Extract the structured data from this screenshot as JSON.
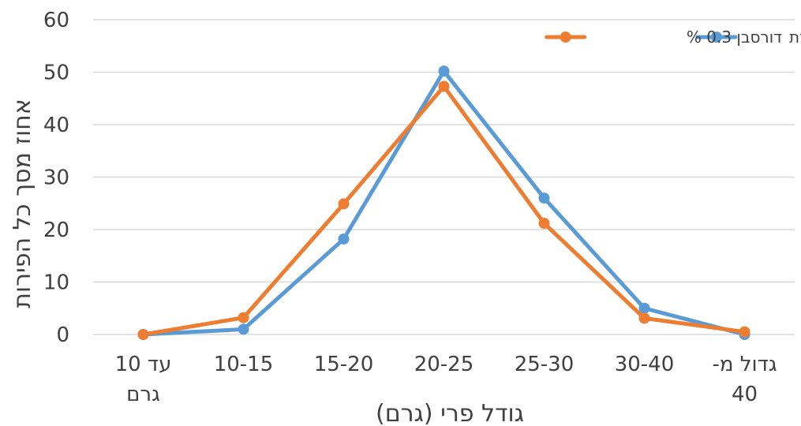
{
  "chart_data": {
    "type": "line",
    "categories": [
      [
        "עד 10",
        "גרם"
      ],
      [
        "10-15"
      ],
      [
        "15-20"
      ],
      [
        "20-25"
      ],
      [
        "25-30"
      ],
      [
        "30-40"
      ],
      [
        "גדול מ-",
        "40"
      ]
    ],
    "series": [
      {
        "name": "ביקורת",
        "values": [
          0,
          1,
          18.2,
          50.2,
          26,
          5,
          0
        ],
        "color": "#5b9bd5"
      },
      {
        "name": "דורסבן 0.3 %",
        "values": [
          0,
          3.2,
          24.9,
          47.3,
          21.2,
          3.1,
          0.5
        ],
        "color": "#ed7d31"
      }
    ],
    "xlabel": "גודל פרי (גרם)",
    "ylabel": "אחוז מסך כל הפירות",
    "ylim": [
      0,
      60
    ],
    "yticks": [
      0,
      10,
      20,
      30,
      40,
      50,
      60
    ],
    "grid": true,
    "legend": "top-right"
  }
}
